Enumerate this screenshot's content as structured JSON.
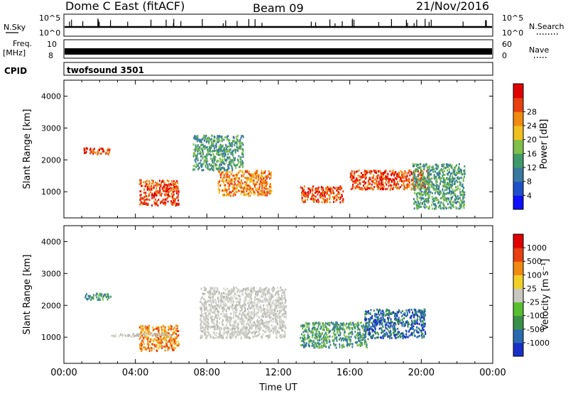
{
  "header": {
    "station": "Dome C East (fitACF)",
    "beam": "Beam 09",
    "date": "21/Nov/2016"
  },
  "status_panels": {
    "nsky_label": "N.Sky",
    "nsky_ticks": [
      "10^5",
      "10^0"
    ],
    "nsearch_label": "N.Search",
    "freq_label_top": "Freq.",
    "freq_label_unit": "[MHz]",
    "freq_ticks": [
      "10",
      "8"
    ],
    "nave_ticks": [
      "60",
      "0"
    ],
    "nave_label": "Nave",
    "cpid_label": "CPID",
    "cpid_value": "twofsound 3501"
  },
  "chart_data": [
    {
      "type": "heatmap",
      "title": "Power",
      "ylabel": "Slant Range [km]",
      "xlabel": "",
      "xlim": [
        "00:00",
        "24:00"
      ],
      "ylim": [
        180,
        4500
      ],
      "yticks": [
        "1000",
        "2000",
        "3000",
        "4000"
      ],
      "colorbar": {
        "label": "Power [dB]",
        "ticks": [
          "4",
          "8",
          "12",
          "16",
          "20",
          "24",
          "28"
        ],
        "colors": [
          "#1010ff",
          "#2050c8",
          "#3a78a0",
          "#3f9a6a",
          "#7fbf4a",
          "#f0c020",
          "#f08a10",
          "#e84010",
          "#e00000"
        ]
      },
      "features": [
        {
          "name": "patch-0230",
          "t_start": 1.1,
          "t_end": 2.6,
          "r_min": 2200,
          "r_max": 2400,
          "level": "red"
        },
        {
          "name": "patch-0500",
          "t_start": 4.2,
          "t_end": 6.4,
          "r_min": 600,
          "r_max": 1400,
          "level": "red"
        },
        {
          "name": "patch-1000",
          "t_start": 8.6,
          "t_end": 11.6,
          "r_min": 900,
          "r_max": 1700,
          "level": "orange"
        },
        {
          "name": "patch-1400",
          "t_start": 13.2,
          "t_end": 15.6,
          "r_min": 700,
          "r_max": 1200,
          "level": "red"
        },
        {
          "name": "patch-1800",
          "t_start": 16.0,
          "t_end": 20.4,
          "r_min": 1100,
          "r_max": 1700,
          "level": "red"
        },
        {
          "name": "patch-0800",
          "t_start": 7.2,
          "t_end": 10.0,
          "r_min": 1700,
          "r_max": 2800,
          "level": "green"
        },
        {
          "name": "patch-2030",
          "t_start": 19.5,
          "t_end": 22.4,
          "r_min": 500,
          "r_max": 1900,
          "level": "green"
        }
      ]
    },
    {
      "type": "heatmap",
      "title": "Velocity",
      "ylabel": "Slant Range [km]",
      "xlabel": "Time UT",
      "xlim": [
        "00:00",
        "24:00"
      ],
      "ylim": [
        180,
        4500
      ],
      "xticks": [
        "00:00",
        "04:00",
        "08:00",
        "12:00",
        "16:00",
        "20:00",
        "00:00"
      ],
      "yticks": [
        "1000",
        "2000",
        "3000",
        "4000"
      ],
      "colorbar": {
        "label": "Velocity [m s⁻¹]",
        "ticks": [
          "1000",
          "500",
          "100",
          "25",
          "-25",
          "-100",
          "-500",
          "-1000"
        ],
        "colors": [
          "#1830c8",
          "#2a6ab0",
          "#3a9048",
          "#58c030",
          "#c8c8c0",
          "#f0d028",
          "#f08a10",
          "#e84010",
          "#e00000"
        ]
      },
      "features": [
        {
          "name": "patch-0230",
          "t_start": 1.1,
          "t_end": 2.6,
          "r_min": 2200,
          "r_max": 2400,
          "level": "green"
        },
        {
          "name": "patch-0500",
          "t_start": 4.2,
          "t_end": 6.4,
          "r_min": 600,
          "r_max": 1400,
          "level": "orange"
        },
        {
          "name": "patch-1000",
          "t_start": 7.6,
          "t_end": 12.4,
          "r_min": 1000,
          "r_max": 2600,
          "level": "grey"
        },
        {
          "name": "patch-1600",
          "t_start": 13.2,
          "t_end": 17.0,
          "r_min": 700,
          "r_max": 1500,
          "level": "green"
        },
        {
          "name": "patch-1800",
          "t_start": 16.8,
          "t_end": 20.2,
          "r_min": 1000,
          "r_max": 1900,
          "level": "blue"
        },
        {
          "name": "patch-0300",
          "t_start": 2.6,
          "t_end": 6.0,
          "r_min": 1050,
          "r_max": 1150,
          "level": "grey"
        }
      ]
    }
  ]
}
